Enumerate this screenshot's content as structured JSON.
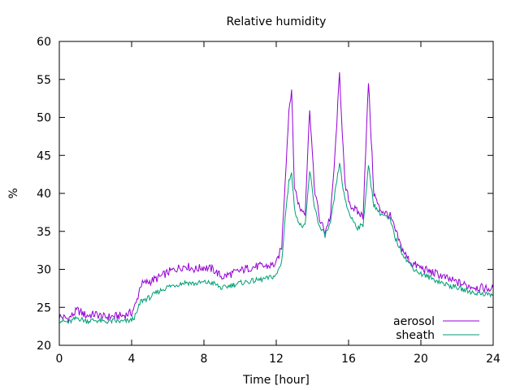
{
  "chart_data": {
    "type": "line",
    "title": "Relative humidity",
    "xlabel": "Time [hour]",
    "ylabel": "%",
    "xlim": [
      0,
      24
    ],
    "ylim": [
      20,
      60
    ],
    "xticks": [
      0,
      4,
      8,
      12,
      16,
      20,
      24
    ],
    "xtick_labels": [
      "0",
      "4",
      "8",
      "12",
      "16",
      "20",
      "24"
    ],
    "yticks": [
      20,
      25,
      30,
      35,
      40,
      45,
      50,
      55,
      60
    ],
    "ytick_labels": [
      "20",
      "25",
      "30",
      "35",
      "40",
      "45",
      "50",
      "55",
      "60"
    ],
    "grid": false,
    "legend": "bottom-right",
    "series": [
      {
        "name": "aerosol",
        "color": "#9400d3",
        "x": [
          0,
          0.5,
          1,
          1.5,
          2,
          2.5,
          3,
          3.5,
          4,
          4.25,
          4.5,
          5,
          5.5,
          6,
          6.5,
          7,
          7.5,
          8,
          8.5,
          9,
          9.5,
          10,
          10.5,
          11,
          11.5,
          12,
          12.3,
          12.5,
          12.7,
          12.85,
          13,
          13.3,
          13.6,
          13.85,
          14.1,
          14.4,
          14.7,
          15,
          15.25,
          15.5,
          15.8,
          16.1,
          16.5,
          16.8,
          17.1,
          17.4,
          17.7,
          18,
          18.3,
          18.6,
          18.9,
          19.2,
          19.5,
          20,
          20.5,
          21,
          21.5,
          22,
          22.5,
          23,
          23.5,
          24
        ],
        "values": [
          23.8,
          23.5,
          24.6,
          23.9,
          24.1,
          23.7,
          23.8,
          23.9,
          24.3,
          25.5,
          28.0,
          28.4,
          28.9,
          29.6,
          30.1,
          30.5,
          30.0,
          30.3,
          30.0,
          29.0,
          29.4,
          29.8,
          30.2,
          30.4,
          30.4,
          30.7,
          33.0,
          42.0,
          51.0,
          53.8,
          41.0,
          38.0,
          37.6,
          51.3,
          41.0,
          36.5,
          35.0,
          37.0,
          45.0,
          55.8,
          41.0,
          38.5,
          37.5,
          37.0,
          54.7,
          40.0,
          38.0,
          37.5,
          37.0,
          35.0,
          33.0,
          31.7,
          30.8,
          30.2,
          29.7,
          29.3,
          28.7,
          28.3,
          27.9,
          27.7,
          27.5,
          27.4
        ]
      },
      {
        "name": "sheath",
        "color": "#009e73",
        "x": [
          0,
          0.5,
          1,
          1.5,
          2,
          2.5,
          3,
          3.5,
          4,
          4.25,
          4.5,
          5,
          5.5,
          6,
          6.5,
          7,
          7.5,
          8,
          8.5,
          9,
          9.5,
          10,
          10.5,
          11,
          11.5,
          12,
          12.3,
          12.5,
          12.7,
          12.85,
          13,
          13.3,
          13.6,
          13.85,
          14.1,
          14.4,
          14.7,
          15,
          15.25,
          15.5,
          15.8,
          16.1,
          16.5,
          16.8,
          17.1,
          17.4,
          17.7,
          18,
          18.3,
          18.6,
          18.9,
          19.2,
          19.5,
          20,
          20.5,
          21,
          21.5,
          22,
          22.5,
          23,
          23.5,
          24
        ],
        "values": [
          23.3,
          23.0,
          23.6,
          23.2,
          23.3,
          23.1,
          23.2,
          23.1,
          23.3,
          24.0,
          25.8,
          26.3,
          27.1,
          27.7,
          28.0,
          28.3,
          28.1,
          28.3,
          28.2,
          27.5,
          27.9,
          28.2,
          28.4,
          28.6,
          28.8,
          29.2,
          31.0,
          37.0,
          41.5,
          43.0,
          38.0,
          35.8,
          35.6,
          43.0,
          38.5,
          35.5,
          34.5,
          36.0,
          40.0,
          44.0,
          39.0,
          37.0,
          35.5,
          35.8,
          43.6,
          38.5,
          37.5,
          37.0,
          36.5,
          34.0,
          32.5,
          31.3,
          30.3,
          29.4,
          28.9,
          28.4,
          27.9,
          27.6,
          27.2,
          26.9,
          26.8,
          26.6
        ]
      }
    ]
  }
}
